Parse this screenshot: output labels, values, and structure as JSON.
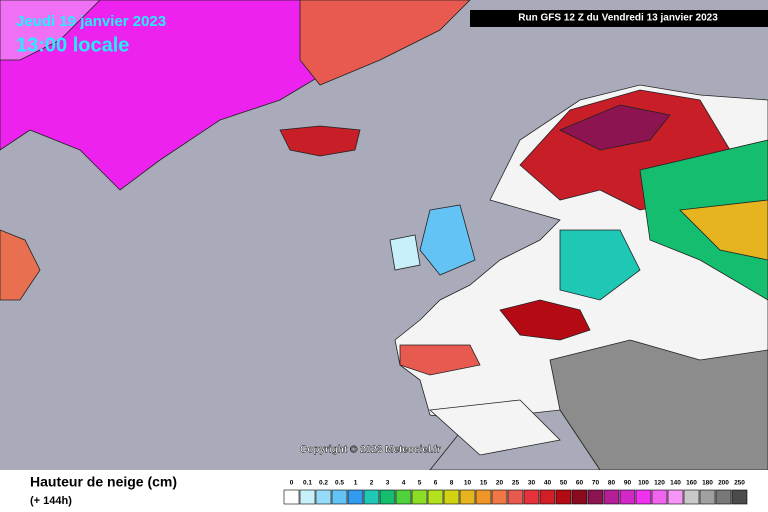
{
  "header": {
    "date": "Jeudi 19 janvier 2023",
    "time": "13:00 locale",
    "run": "Run GFS 12 Z du Vendredi 13 janvier 2023"
  },
  "map": {
    "copyright": "Copyright © 2023 Meteociel.fr"
  },
  "footer": {
    "title": "Hauteur de neige (cm)",
    "lead": "(+ 144h)"
  },
  "legend": {
    "entries": [
      {
        "label": "0",
        "color": "#ffffff"
      },
      {
        "label": "0.1",
        "color": "#c8f0fa"
      },
      {
        "label": "0.2",
        "color": "#96dcfa"
      },
      {
        "label": "0.5",
        "color": "#64c3f5"
      },
      {
        "label": "1",
        "color": "#329bf0"
      },
      {
        "label": "2",
        "color": "#1ec8b4"
      },
      {
        "label": "3",
        "color": "#14be6e"
      },
      {
        "label": "4",
        "color": "#50d23c"
      },
      {
        "label": "5",
        "color": "#8cdc28"
      },
      {
        "label": "6",
        "color": "#b4e11e"
      },
      {
        "label": "8",
        "color": "#d2d214"
      },
      {
        "label": "10",
        "color": "#e6b41e"
      },
      {
        "label": "15",
        "color": "#f09628"
      },
      {
        "label": "20",
        "color": "#f07846"
      },
      {
        "label": "25",
        "color": "#e65a50"
      },
      {
        "label": "30",
        "color": "#e6323c"
      },
      {
        "label": "40",
        "color": "#d21e28"
      },
      {
        "label": "50",
        "color": "#b40a14"
      },
      {
        "label": "60",
        "color": "#8c0a1e"
      },
      {
        "label": "70",
        "color": "#8c1450"
      },
      {
        "label": "80",
        "color": "#b41e96"
      },
      {
        "label": "90",
        "color": "#d228c8"
      },
      {
        "label": "100",
        "color": "#f032f0"
      },
      {
        "label": "120",
        "color": "#f064f0"
      },
      {
        "label": "140",
        "color": "#f596f5"
      },
      {
        "label": "160",
        "color": "#c8c8c8"
      },
      {
        "label": "180",
        "color": "#a0a0a0"
      },
      {
        "label": "200",
        "color": "#787878"
      },
      {
        "label": "250",
        "color": "#4b4b4b"
      }
    ]
  }
}
